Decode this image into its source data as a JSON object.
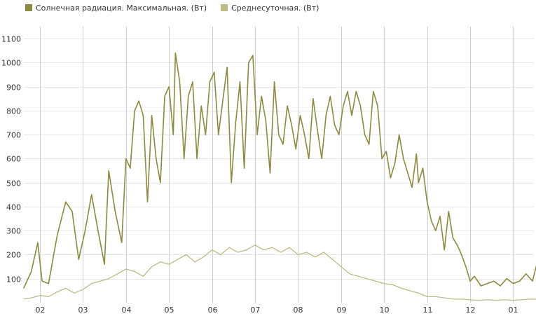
{
  "chart_data": {
    "type": "line",
    "title": "",
    "xlabel": "",
    "ylabel": "",
    "ylim": [
      0,
      1150
    ],
    "y_ticks": [
      100,
      200,
      300,
      400,
      500,
      600,
      700,
      800,
      900,
      1000,
      1100
    ],
    "x_ticks": [
      "02",
      "03",
      "04",
      "05",
      "06",
      "07",
      "08",
      "09",
      "10",
      "11",
      "12",
      "01"
    ],
    "x_unit": "month number; data are daily values, x = month index (02 = 1.0 … 01 = 12.0)",
    "grid": {
      "horizontal": true,
      "vertical": true
    },
    "legend_position": "top-left",
    "series": [
      {
        "name": "Солнечная радиация. Максимальная. (Вт)",
        "color": "#8b8a3e",
        "points": [
          [
            0.62,
            60
          ],
          [
            0.8,
            130
          ],
          [
            0.95,
            250
          ],
          [
            1.05,
            90
          ],
          [
            1.2,
            80
          ],
          [
            1.4,
            280
          ],
          [
            1.6,
            420
          ],
          [
            1.75,
            380
          ],
          [
            1.9,
            180
          ],
          [
            2.05,
            300
          ],
          [
            2.2,
            450
          ],
          [
            2.35,
            300
          ],
          [
            2.5,
            160
          ],
          [
            2.6,
            550
          ],
          [
            2.75,
            380
          ],
          [
            2.9,
            250
          ],
          [
            3.0,
            600
          ],
          [
            3.1,
            560
          ],
          [
            3.2,
            800
          ],
          [
            3.3,
            840
          ],
          [
            3.4,
            780
          ],
          [
            3.5,
            420
          ],
          [
            3.6,
            780
          ],
          [
            3.7,
            600
          ],
          [
            3.8,
            500
          ],
          [
            3.9,
            860
          ],
          [
            4.0,
            900
          ],
          [
            4.1,
            700
          ],
          [
            4.15,
            1040
          ],
          [
            4.25,
            920
          ],
          [
            4.35,
            600
          ],
          [
            4.45,
            860
          ],
          [
            4.55,
            920
          ],
          [
            4.65,
            600
          ],
          [
            4.75,
            820
          ],
          [
            4.85,
            700
          ],
          [
            4.95,
            920
          ],
          [
            5.05,
            960
          ],
          [
            5.15,
            700
          ],
          [
            5.25,
            840
          ],
          [
            5.35,
            980
          ],
          [
            5.45,
            500
          ],
          [
            5.55,
            750
          ],
          [
            5.65,
            920
          ],
          [
            5.75,
            560
          ],
          [
            5.85,
            1000
          ],
          [
            5.95,
            1030
          ],
          [
            6.05,
            700
          ],
          [
            6.15,
            860
          ],
          [
            6.25,
            760
          ],
          [
            6.35,
            540
          ],
          [
            6.45,
            920
          ],
          [
            6.55,
            700
          ],
          [
            6.65,
            660
          ],
          [
            6.75,
            820
          ],
          [
            6.85,
            740
          ],
          [
            6.95,
            640
          ],
          [
            7.05,
            780
          ],
          [
            7.15,
            700
          ],
          [
            7.25,
            600
          ],
          [
            7.35,
            850
          ],
          [
            7.45,
            720
          ],
          [
            7.55,
            600
          ],
          [
            7.65,
            780
          ],
          [
            7.75,
            860
          ],
          [
            7.85,
            740
          ],
          [
            7.95,
            700
          ],
          [
            8.05,
            820
          ],
          [
            8.15,
            880
          ],
          [
            8.25,
            780
          ],
          [
            8.35,
            880
          ],
          [
            8.45,
            820
          ],
          [
            8.55,
            700
          ],
          [
            8.65,
            660
          ],
          [
            8.75,
            880
          ],
          [
            8.85,
            820
          ],
          [
            8.95,
            600
          ],
          [
            9.05,
            630
          ],
          [
            9.15,
            520
          ],
          [
            9.25,
            580
          ],
          [
            9.35,
            700
          ],
          [
            9.45,
            600
          ],
          [
            9.55,
            540
          ],
          [
            9.65,
            480
          ],
          [
            9.75,
            620
          ],
          [
            9.8,
            500
          ],
          [
            9.9,
            560
          ],
          [
            10.0,
            420
          ],
          [
            10.1,
            340
          ],
          [
            10.2,
            300
          ],
          [
            10.3,
            360
          ],
          [
            10.4,
            220
          ],
          [
            10.5,
            380
          ],
          [
            10.6,
            270
          ],
          [
            10.7,
            240
          ],
          [
            10.8,
            200
          ],
          [
            10.9,
            150
          ],
          [
            11.0,
            90
          ],
          [
            11.1,
            110
          ],
          [
            11.25,
            70
          ],
          [
            11.4,
            80
          ],
          [
            11.55,
            90
          ],
          [
            11.7,
            70
          ],
          [
            11.85,
            100
          ],
          [
            12.0,
            80
          ],
          [
            12.15,
            90
          ],
          [
            12.3,
            120
          ],
          [
            12.45,
            90
          ],
          [
            12.55,
            160
          ],
          [
            12.62,
            70
          ]
        ]
      },
      {
        "name": "Среднесуточная. (Вт)",
        "color": "#bdbb84",
        "points": [
          [
            0.62,
            15
          ],
          [
            0.8,
            20
          ],
          [
            1.0,
            30
          ],
          [
            1.2,
            25
          ],
          [
            1.4,
            45
          ],
          [
            1.6,
            60
          ],
          [
            1.8,
            40
          ],
          [
            2.0,
            55
          ],
          [
            2.2,
            80
          ],
          [
            2.4,
            90
          ],
          [
            2.6,
            100
          ],
          [
            2.8,
            120
          ],
          [
            3.0,
            140
          ],
          [
            3.2,
            130
          ],
          [
            3.4,
            110
          ],
          [
            3.6,
            150
          ],
          [
            3.8,
            170
          ],
          [
            4.0,
            160
          ],
          [
            4.2,
            180
          ],
          [
            4.4,
            200
          ],
          [
            4.6,
            170
          ],
          [
            4.8,
            190
          ],
          [
            5.0,
            220
          ],
          [
            5.2,
            200
          ],
          [
            5.4,
            230
          ],
          [
            5.6,
            210
          ],
          [
            5.8,
            220
          ],
          [
            6.0,
            240
          ],
          [
            6.2,
            220
          ],
          [
            6.4,
            230
          ],
          [
            6.6,
            210
          ],
          [
            6.8,
            230
          ],
          [
            7.0,
            200
          ],
          [
            7.2,
            210
          ],
          [
            7.4,
            190
          ],
          [
            7.6,
            210
          ],
          [
            7.8,
            180
          ],
          [
            8.0,
            150
          ],
          [
            8.2,
            120
          ],
          [
            8.4,
            110
          ],
          [
            8.6,
            100
          ],
          [
            8.8,
            90
          ],
          [
            9.0,
            80
          ],
          [
            9.2,
            75
          ],
          [
            9.4,
            60
          ],
          [
            9.6,
            50
          ],
          [
            9.8,
            40
          ],
          [
            10.0,
            25
          ],
          [
            10.2,
            25
          ],
          [
            10.4,
            20
          ],
          [
            10.6,
            15
          ],
          [
            10.8,
            15
          ],
          [
            11.0,
            12
          ],
          [
            11.2,
            10
          ],
          [
            11.4,
            12
          ],
          [
            11.6,
            10
          ],
          [
            11.8,
            12
          ],
          [
            12.0,
            10
          ],
          [
            12.2,
            12
          ],
          [
            12.4,
            15
          ],
          [
            12.62,
            14
          ]
        ]
      }
    ]
  }
}
